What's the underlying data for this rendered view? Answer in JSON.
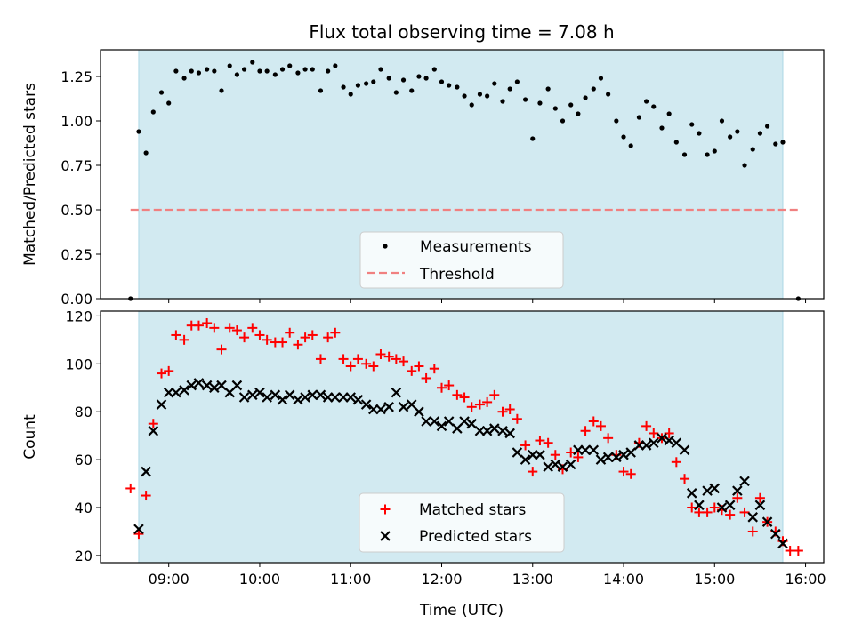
{
  "chart_data": {
    "title": "Flux total observing time = 7.08 h",
    "xlabel": "Time (UTC)",
    "x_unit": "hours",
    "xlim": [
      8.25,
      16.2
    ],
    "x_ticks": [
      9,
      10,
      11,
      12,
      13,
      14,
      15,
      16
    ],
    "x_tick_labels": [
      "09:00",
      "10:00",
      "11:00",
      "12:00",
      "13:00",
      "14:00",
      "15:00",
      "16:00"
    ],
    "observing_window": [
      8.67,
      15.75
    ],
    "colors": {
      "window": "#add8e6",
      "measurements": "#000000",
      "threshold": "#f08080",
      "matched": "#ff0000",
      "predicted": "#000000"
    },
    "panels": [
      {
        "type": "scatter",
        "ylabel": "Matched/Predicted stars",
        "ylim": [
          0,
          1.4
        ],
        "y_ticks": [
          0,
          0.25,
          0.5,
          0.75,
          1.0,
          1.25
        ],
        "y_tick_labels": [
          "0.00",
          "0.25",
          "0.50",
          "0.75",
          "1.00",
          "1.25"
        ],
        "legend": [
          "Measurements",
          "Threshold"
        ],
        "threshold": {
          "name": "Threshold",
          "value": 0.5,
          "x_range": [
            8.58,
            15.93
          ]
        },
        "series": [
          {
            "name": "Measurements",
            "marker": "dot",
            "x": [
              8.58,
              8.67,
              8.75,
              8.83,
              8.92,
              9.0,
              9.08,
              9.17,
              9.25,
              9.33,
              9.42,
              9.5,
              9.58,
              9.67,
              9.75,
              9.83,
              9.92,
              10.0,
              10.08,
              10.17,
              10.25,
              10.33,
              10.42,
              10.5,
              10.58,
              10.67,
              10.75,
              10.83,
              10.92,
              11.0,
              11.08,
              11.17,
              11.25,
              11.33,
              11.42,
              11.5,
              11.58,
              11.67,
              11.75,
              11.83,
              11.92,
              12.0,
              12.08,
              12.17,
              12.25,
              12.33,
              12.42,
              12.5,
              12.58,
              12.67,
              12.75,
              12.83,
              12.92,
              13.0,
              13.08,
              13.17,
              13.25,
              13.33,
              13.42,
              13.5,
              13.58,
              13.67,
              13.75,
              13.83,
              13.92,
              14.0,
              14.08,
              14.17,
              14.25,
              14.33,
              14.42,
              14.5,
              14.58,
              14.67,
              14.75,
              14.83,
              14.92,
              15.0,
              15.08,
              15.17,
              15.25,
              15.33,
              15.42,
              15.5,
              15.58,
              15.67,
              15.75,
              15.92
            ],
            "y": [
              0.0,
              0.94,
              0.82,
              1.05,
              1.16,
              1.1,
              1.28,
              1.24,
              1.28,
              1.27,
              1.29,
              1.28,
              1.17,
              1.31,
              1.26,
              1.29,
              1.33,
              1.28,
              1.28,
              1.26,
              1.29,
              1.31,
              1.27,
              1.29,
              1.29,
              1.17,
              1.28,
              1.31,
              1.19,
              1.15,
              1.2,
              1.21,
              1.22,
              1.29,
              1.24,
              1.16,
              1.23,
              1.17,
              1.25,
              1.24,
              1.29,
              1.22,
              1.2,
              1.19,
              1.14,
              1.09,
              1.15,
              1.14,
              1.21,
              1.11,
              1.18,
              1.22,
              1.12,
              0.9,
              1.1,
              1.18,
              1.07,
              1.0,
              1.09,
              1.04,
              1.13,
              1.18,
              1.24,
              1.15,
              1.0,
              0.91,
              0.86,
              1.02,
              1.11,
              1.08,
              0.96,
              1.04,
              0.88,
              0.81,
              0.98,
              0.93,
              0.81,
              0.83,
              1.0,
              0.91,
              0.94,
              0.75,
              0.84,
              0.93,
              0.97,
              0.87,
              0.88,
              0.0
            ]
          }
        ]
      },
      {
        "type": "scatter",
        "ylabel": "Count",
        "ylim": [
          17,
          122
        ],
        "y_ticks": [
          20,
          40,
          60,
          80,
          100,
          120
        ],
        "y_tick_labels": [
          "20",
          "40",
          "60",
          "80",
          "100",
          "120"
        ],
        "legend": [
          "Matched stars",
          "Predicted stars"
        ],
        "series": [
          {
            "name": "Matched stars",
            "marker": "plus",
            "x": [
              8.58,
              8.67,
              8.75,
              8.83,
              8.92,
              9.0,
              9.08,
              9.17,
              9.25,
              9.33,
              9.42,
              9.5,
              9.58,
              9.67,
              9.75,
              9.83,
              9.92,
              10.0,
              10.08,
              10.17,
              10.25,
              10.33,
              10.42,
              10.5,
              10.58,
              10.67,
              10.75,
              10.83,
              10.92,
              11.0,
              11.08,
              11.17,
              11.25,
              11.33,
              11.42,
              11.5,
              11.58,
              11.67,
              11.75,
              11.83,
              11.92,
              12.0,
              12.08,
              12.17,
              12.25,
              12.33,
              12.42,
              12.5,
              12.58,
              12.67,
              12.75,
              12.83,
              12.92,
              13.0,
              13.08,
              13.17,
              13.25,
              13.33,
              13.42,
              13.5,
              13.58,
              13.67,
              13.75,
              13.83,
              13.92,
              14.0,
              14.08,
              14.17,
              14.25,
              14.33,
              14.42,
              14.5,
              14.58,
              14.67,
              14.75,
              14.83,
              14.92,
              15.0,
              15.08,
              15.17,
              15.25,
              15.33,
              15.42,
              15.5,
              15.58,
              15.67,
              15.75,
              15.83,
              15.92
            ],
            "y": [
              48,
              29,
              45,
              75,
              96,
              97,
              112,
              110,
              116,
              116,
              117,
              115,
              106,
              115,
              114,
              111,
              115,
              112,
              110,
              109,
              109,
              113,
              108,
              111,
              112,
              102,
              111,
              113,
              102,
              99,
              102,
              100,
              99,
              104,
              103,
              102,
              101,
              97,
              99,
              94,
              98,
              90,
              91,
              87,
              86,
              82,
              83,
              84,
              87,
              80,
              81,
              77,
              66,
              55,
              68,
              67,
              62,
              56,
              63,
              61,
              72,
              76,
              74,
              69,
              62,
              55,
              54,
              67,
              74,
              71,
              69,
              71,
              59,
              52,
              40,
              38,
              38,
              40,
              39,
              37,
              44,
              38,
              30,
              44,
              34,
              30,
              26,
              22,
              22
            ]
          },
          {
            "name": "Predicted stars",
            "marker": "x",
            "x": [
              8.67,
              8.75,
              8.83,
              8.92,
              9.0,
              9.08,
              9.17,
              9.25,
              9.33,
              9.42,
              9.5,
              9.58,
              9.67,
              9.75,
              9.83,
              9.92,
              10.0,
              10.08,
              10.17,
              10.25,
              10.33,
              10.42,
              10.5,
              10.58,
              10.67,
              10.75,
              10.83,
              10.92,
              11.0,
              11.08,
              11.17,
              11.25,
              11.33,
              11.42,
              11.5,
              11.58,
              11.67,
              11.75,
              11.83,
              11.92,
              12.0,
              12.08,
              12.17,
              12.25,
              12.33,
              12.42,
              12.5,
              12.58,
              12.67,
              12.75,
              12.83,
              12.92,
              13.0,
              13.08,
              13.17,
              13.25,
              13.33,
              13.42,
              13.5,
              13.58,
              13.67,
              13.75,
              13.83,
              13.92,
              14.0,
              14.08,
              14.17,
              14.25,
              14.33,
              14.42,
              14.5,
              14.58,
              14.67,
              14.75,
              14.83,
              14.92,
              15.0,
              15.08,
              15.17,
              15.25,
              15.33,
              15.42,
              15.5,
              15.58,
              15.67,
              15.75
            ],
            "y": [
              31,
              55,
              72,
              83,
              88,
              88,
              89,
              91,
              92,
              91,
              90,
              91,
              88,
              91,
              86,
              87,
              88,
              86,
              87,
              85,
              87,
              85,
              86,
              87,
              87,
              86,
              86,
              86,
              86,
              85,
              83,
              81,
              81,
              82,
              88,
              82,
              83,
              80,
              76,
              76,
              74,
              76,
              73,
              76,
              75,
              72,
              72,
              73,
              72,
              71,
              63,
              60,
              62,
              62,
              57,
              58,
              57,
              58,
              64,
              64,
              64,
              60,
              61,
              61,
              62,
              63,
              66,
              66,
              67,
              69,
              68,
              67,
              64,
              46,
              41,
              47,
              48,
              40,
              41,
              47,
              51,
              36,
              41,
              34,
              29,
              25
            ]
          }
        ]
      }
    ]
  }
}
